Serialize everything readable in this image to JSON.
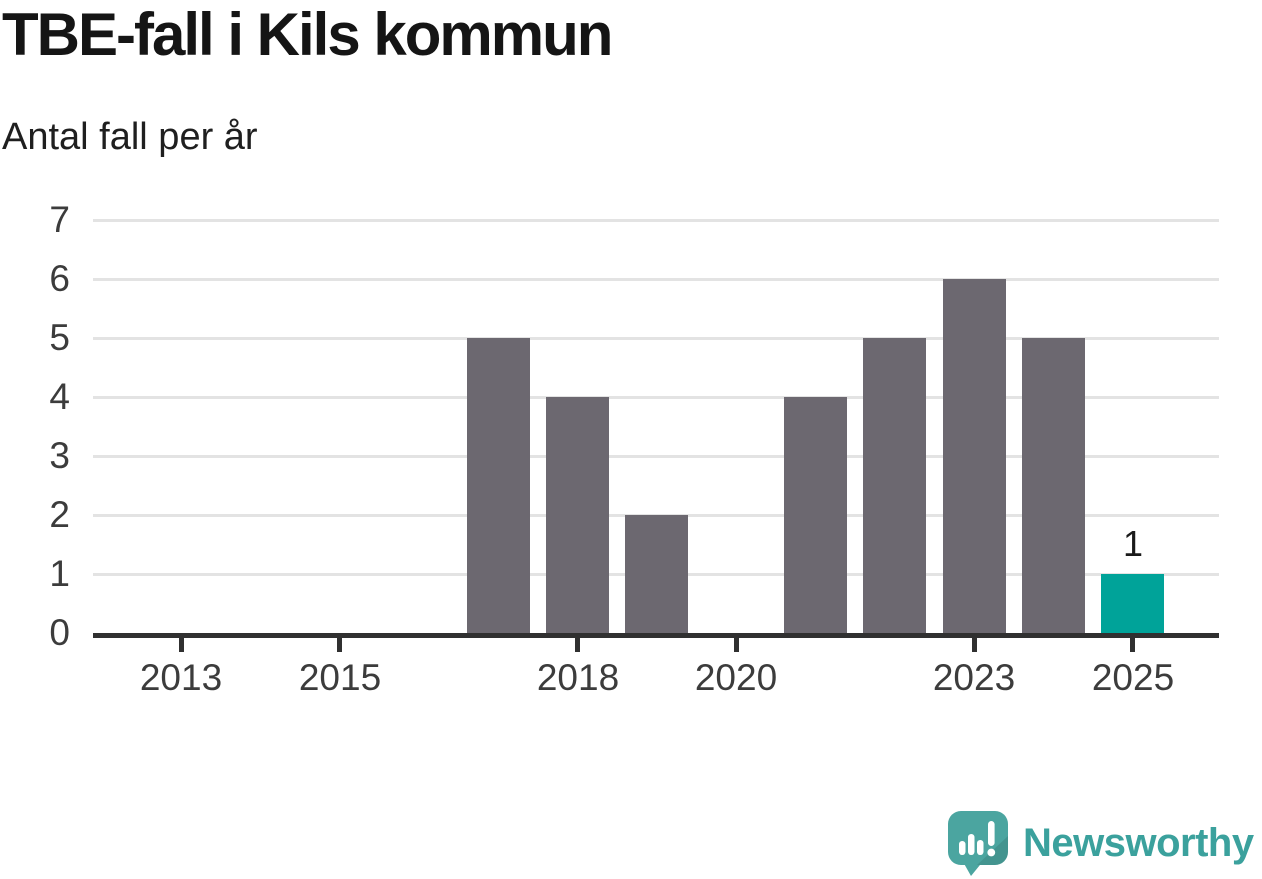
{
  "header": {
    "title": "TBE-fall i Kils kommun",
    "subtitle": "Antal fall per år"
  },
  "chart_data": {
    "type": "bar",
    "title": "TBE-fall i Kils kommun",
    "subtitle": "Antal fall per år",
    "categories": [
      "2013",
      "2014",
      "2015",
      "2016",
      "2017",
      "2018",
      "2019",
      "2020",
      "2021",
      "2022",
      "2023",
      "2024",
      "2025"
    ],
    "values": [
      0,
      0,
      0,
      0,
      5,
      4,
      2,
      0,
      4,
      5,
      6,
      5,
      1
    ],
    "ylim": [
      0,
      7
    ],
    "yticks": [
      0,
      1,
      2,
      3,
      4,
      5,
      6,
      7
    ],
    "xtick_labels": [
      "2013",
      "2015",
      "2018",
      "2020",
      "2023",
      "2025"
    ],
    "grid": true,
    "legend": "none",
    "bar_color": "#6c6870",
    "highlight_category": "2025",
    "highlight_color": "#00a399",
    "gridline_color": "#e3e3e3",
    "axis_color": "#303030",
    "annotations": [
      {
        "category": "2025",
        "value": 1,
        "text": "1"
      }
    ]
  },
  "footer": {
    "brand": "Newsworthy",
    "brand_color": "#3ba19d",
    "logo_color": "#4ba5a0"
  }
}
